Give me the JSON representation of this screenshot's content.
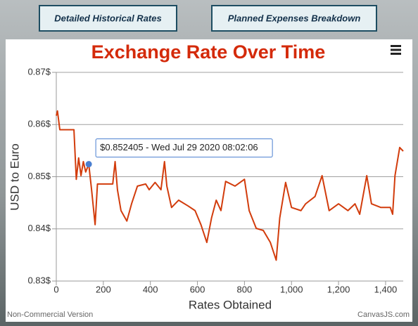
{
  "buttons": [
    "Detailed Historical Rates",
    "Planned Expenses Breakdown"
  ],
  "chart_data": {
    "type": "line",
    "title": "Exchange Rate Over Time",
    "x_label": "Rates Obtained",
    "y_label": "USD to Euro",
    "color": "#d23c0c",
    "x": [
      0,
      5,
      15,
      40,
      75,
      85,
      95,
      105,
      115,
      125,
      138,
      150,
      165,
      175,
      200,
      240,
      250,
      260,
      275,
      300,
      320,
      345,
      380,
      395,
      420,
      445,
      460,
      470,
      490,
      520,
      560,
      590,
      615,
      640,
      660,
      680,
      700,
      720,
      760,
      800,
      820,
      850,
      880,
      910,
      935,
      950,
      975,
      1000,
      1040,
      1060,
      1100,
      1130,
      1160,
      1200,
      1240,
      1270,
      1290,
      1320,
      1340,
      1380,
      1420,
      1430,
      1440,
      1460,
      1475
    ],
    "values": [
      0.8617,
      0.8626,
      0.859,
      0.859,
      0.859,
      0.8495,
      0.8536,
      0.8502,
      0.8529,
      0.8509,
      0.852405,
      0.8475,
      0.8408,
      0.8486,
      0.8486,
      0.8486,
      0.8529,
      0.8475,
      0.8435,
      0.8415,
      0.8448,
      0.8482,
      0.8486,
      0.8475,
      0.8489,
      0.8475,
      0.8529,
      0.8482,
      0.8441,
      0.8455,
      0.8444,
      0.8435,
      0.8408,
      0.8374,
      0.8421,
      0.8455,
      0.8435,
      0.8491,
      0.8482,
      0.8495,
      0.8435,
      0.8401,
      0.8397,
      0.8374,
      0.834,
      0.8421,
      0.8489,
      0.8441,
      0.8435,
      0.8448,
      0.8462,
      0.8502,
      0.8435,
      0.8448,
      0.8435,
      0.8448,
      0.8428,
      0.8502,
      0.8448,
      0.8441,
      0.8441,
      0.8428,
      0.8502,
      0.8556,
      0.8549
    ],
    "xlim": [
      0,
      1475
    ],
    "ylim": [
      0.83,
      0.87
    ],
    "xticks": [
      0,
      200,
      400,
      600,
      800,
      {
        "value": 1000,
        "label": "1,000"
      },
      {
        "value": 1200,
        "label": "1,200"
      },
      {
        "value": 1400,
        "label": "1,400"
      }
    ],
    "yticks": [
      {
        "value": 0.83,
        "label": "0.83$"
      },
      {
        "value": 0.84,
        "label": "0.84$"
      },
      {
        "value": 0.85,
        "label": "0.85$"
      },
      {
        "value": 0.86,
        "label": "0.86$"
      },
      {
        "value": 0.87,
        "label": "0.87$"
      }
    ],
    "grid": true,
    "tooltip": {
      "text": "$0.852405 - Wed Jul 29 2020 08:02:06",
      "x": 138,
      "value": 0.852405
    },
    "credits": [
      "Non-Commercial Version",
      "CanvasJS.com"
    ]
  }
}
